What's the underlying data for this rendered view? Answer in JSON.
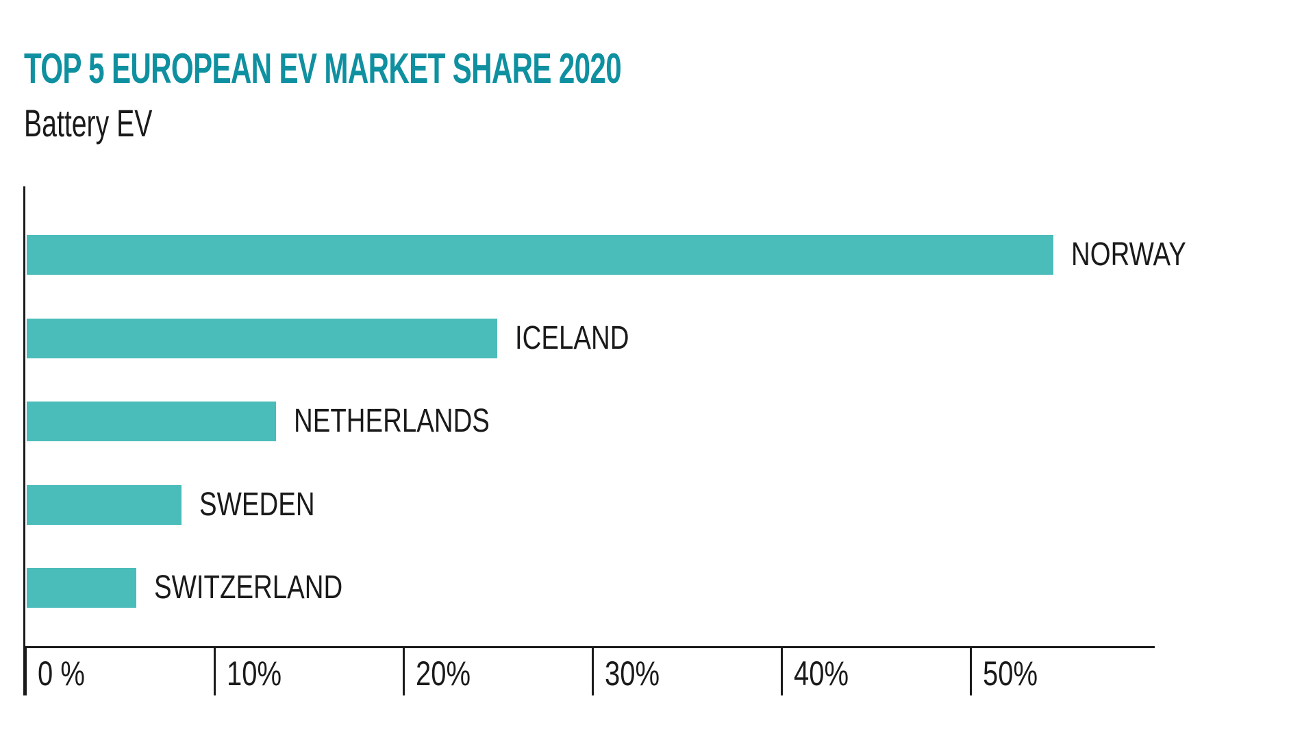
{
  "header": {
    "title": "TOP 5 EUROPEAN EV MARKET SHARE 2020",
    "subtitle": "Battery EV"
  },
  "colors": {
    "title_accent": "#0F90A0",
    "bar": "#4ABCB9",
    "axis": "#1A1A1A",
    "text": "#1A1A1A",
    "background": "#FFFFFF"
  },
  "chart_data": {
    "type": "bar",
    "orientation": "horizontal",
    "title": "TOP 5 EUROPEAN EV MARKET SHARE 2020",
    "subtitle": "Battery EV",
    "categories": [
      "NORWAY",
      "ICELAND",
      "NETHERLANDS",
      "SWEDEN",
      "SWITZERLAND"
    ],
    "values": [
      54.3,
      24.9,
      13.2,
      8.2,
      5.8
    ],
    "unit": "%",
    "xlabel": "",
    "ylabel": "",
    "xlim": [
      0,
      60
    ],
    "x_ticks": {
      "values": [
        0,
        10,
        20,
        30,
        40,
        50
      ],
      "labels": [
        "0 %",
        "10%",
        "20%",
        "30%",
        "40%",
        "50%"
      ]
    },
    "grid": false,
    "legend": false,
    "bar_color": "#4ABCB9",
    "category_label_position": "right-of-bar"
  }
}
